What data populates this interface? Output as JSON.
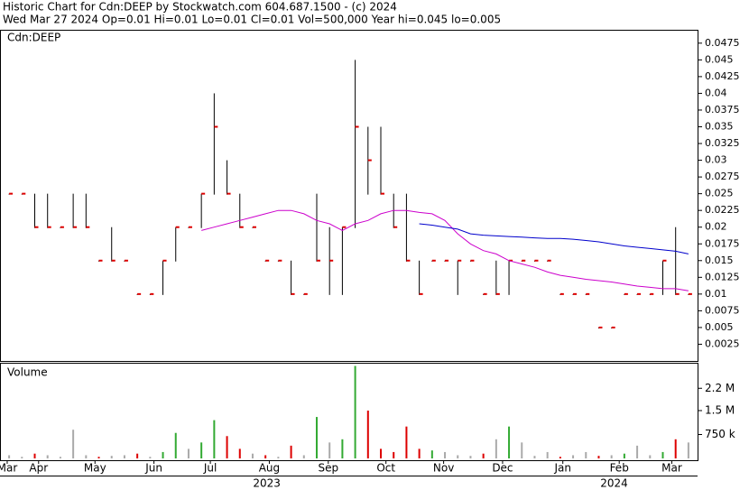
{
  "chart_data": [
    {
      "type": "ohlc",
      "title": "Historic Chart for Cdn:DEEP by Stockwatch.com 604.687.1500 - (c) 2024",
      "subtitle": "Wed Mar 27 2024  Op=0.01  Hi=0.01  Lo=0.01  Cl=0.01  Vol=500,000  Year hi=0.045  lo=0.005",
      "label": "Cdn:DEEP",
      "x": [
        0,
        1,
        2,
        3,
        4,
        5,
        6,
        7,
        8,
        9,
        10,
        11,
        12,
        13,
        14,
        15,
        16,
        17,
        18,
        19,
        20,
        21,
        22,
        23,
        24,
        25,
        26,
        27,
        28,
        29,
        30,
        31,
        32,
        33,
        34,
        35,
        36,
        37,
        38,
        39,
        40,
        41,
        42,
        43,
        44,
        45,
        46,
        47,
        48,
        49,
        50,
        51,
        52,
        53
      ],
      "high": [
        0.025,
        0.025,
        0.025,
        0.025,
        0.02,
        0.025,
        0.025,
        0.015,
        0.02,
        0.015,
        0.01,
        0.01,
        0.015,
        0.02,
        0.02,
        0.025,
        0.04,
        0.03,
        0.025,
        0.02,
        0.015,
        0.015,
        0.015,
        0.01,
        0.025,
        0.02,
        0.02,
        0.045,
        0.035,
        0.035,
        0.025,
        0.025,
        0.015,
        0.015,
        0.015,
        0.015,
        0.015,
        0.01,
        0.015,
        0.015,
        0.015,
        0.015,
        0.015,
        0.01,
        0.01,
        0.01,
        0.005,
        0.005,
        0.01,
        0.01,
        0.01,
        0.015,
        0.02,
        0.01
      ],
      "low": [
        0.025,
        0.025,
        0.02,
        0.02,
        0.02,
        0.02,
        0.02,
        0.015,
        0.015,
        0.015,
        0.01,
        0.01,
        0.01,
        0.015,
        0.02,
        0.02,
        0.025,
        0.025,
        0.02,
        0.02,
        0.015,
        0.015,
        0.01,
        0.01,
        0.015,
        0.01,
        0.01,
        0.02,
        0.025,
        0.025,
        0.02,
        0.015,
        0.01,
        0.015,
        0.015,
        0.01,
        0.015,
        0.01,
        0.01,
        0.01,
        0.015,
        0.015,
        0.015,
        0.01,
        0.01,
        0.01,
        0.005,
        0.005,
        0.01,
        0.01,
        0.01,
        0.01,
        0.01,
        0.01
      ],
      "close": [
        0.025,
        0.025,
        0.02,
        0.02,
        0.02,
        0.02,
        0.02,
        0.015,
        0.015,
        0.015,
        0.01,
        0.01,
        0.015,
        0.02,
        0.02,
        0.025,
        0.035,
        0.025,
        0.02,
        0.02,
        0.015,
        0.015,
        0.01,
        0.01,
        0.015,
        0.015,
        0.02,
        0.035,
        0.03,
        0.025,
        0.02,
        0.015,
        0.01,
        0.015,
        0.015,
        0.015,
        0.015,
        0.01,
        0.01,
        0.015,
        0.015,
        0.015,
        0.015,
        0.01,
        0.01,
        0.01,
        0.005,
        0.005,
        0.01,
        0.01,
        0.01,
        0.015,
        0.01,
        0.01
      ],
      "bar_color": "#000000",
      "close_color": "#dd0000",
      "series": [
        {
          "color": "#cc00cc",
          "values": [
            null,
            null,
            null,
            null,
            null,
            null,
            null,
            null,
            null,
            null,
            null,
            null,
            null,
            null,
            null,
            0.0195,
            0.02,
            0.0205,
            0.021,
            0.0215,
            0.022,
            0.0225,
            0.0225,
            0.022,
            0.021,
            0.0205,
            0.0195,
            0.0205,
            0.021,
            0.022,
            0.0225,
            0.0225,
            0.0222,
            0.022,
            0.021,
            0.019,
            0.0175,
            0.0165,
            0.016,
            0.015,
            0.0145,
            0.014,
            0.0133,
            0.0128,
            0.0125,
            0.0122,
            0.012,
            0.0118,
            0.0115,
            0.0112,
            0.011,
            0.0108,
            0.0108,
            0.0105
          ]
        },
        {
          "color": "#0000cc",
          "values": [
            null,
            null,
            null,
            null,
            null,
            null,
            null,
            null,
            null,
            null,
            null,
            null,
            null,
            null,
            null,
            null,
            null,
            null,
            null,
            null,
            null,
            null,
            null,
            null,
            null,
            null,
            null,
            null,
            null,
            null,
            null,
            null,
            0.0205,
            0.0203,
            0.02,
            0.0197,
            0.019,
            0.0188,
            0.0187,
            0.0186,
            0.0185,
            0.0184,
            0.0183,
            0.0183,
            0.0182,
            0.018,
            0.0178,
            0.0175,
            0.0172,
            0.017,
            0.0168,
            0.0166,
            0.0164,
            0.016
          ]
        }
      ],
      "xlim": [
        -0.5,
        53.5
      ],
      "ylim": [
        0,
        0.0495
      ],
      "yticks": [
        0.0025,
        0.005,
        0.0075,
        0.01,
        0.0125,
        0.015,
        0.0175,
        0.02,
        0.0225,
        0.025,
        0.0275,
        0.03,
        0.0325,
        0.035,
        0.0375,
        0.04,
        0.0425,
        0.045,
        0.0475
      ]
    },
    {
      "type": "bar",
      "title": "Volume",
      "x": [
        0,
        1,
        2,
        3,
        4,
        5,
        6,
        7,
        8,
        9,
        10,
        11,
        12,
        13,
        14,
        15,
        16,
        17,
        18,
        19,
        20,
        21,
        22,
        23,
        24,
        25,
        26,
        27,
        28,
        29,
        30,
        31,
        32,
        33,
        34,
        35,
        36,
        37,
        38,
        39,
        40,
        41,
        42,
        43,
        44,
        45,
        46,
        47,
        48,
        49,
        50,
        51,
        52,
        53
      ],
      "values": [
        100000,
        50000,
        150000,
        100000,
        50000,
        900000,
        100000,
        50000,
        80000,
        100000,
        150000,
        50000,
        200000,
        800000,
        300000,
        500000,
        1200000,
        700000,
        300000,
        150000,
        100000,
        50000,
        400000,
        100000,
        1300000,
        500000,
        600000,
        2900000,
        1500000,
        300000,
        200000,
        1000000,
        300000,
        250000,
        200000,
        100000,
        80000,
        150000,
        600000,
        1000000,
        500000,
        80000,
        200000,
        50000,
        100000,
        200000,
        80000,
        100000,
        150000,
        400000,
        100000,
        200000,
        600000,
        500000
      ],
      "up_color": "#33aa33",
      "down_color": "#dd0000",
      "flat_color": "#aaaaaa",
      "xlim": [
        -0.5,
        53.5
      ],
      "ylim": [
        0,
        3000000
      ],
      "yticks": [
        {
          "value": 750000,
          "label": "750 k"
        },
        {
          "value": 1500000,
          "label": "1.5 M"
        },
        {
          "value": 2200000,
          "label": "2.2 M"
        }
      ],
      "xticks": [
        {
          "value": -0.15,
          "label": "Mar"
        },
        {
          "value": 2.3,
          "label": "Apr"
        },
        {
          "value": 6.7,
          "label": "May"
        },
        {
          "value": 11.3,
          "label": "Jun"
        },
        {
          "value": 15.7,
          "label": "Jul"
        },
        {
          "value": 20.3,
          "label": "Aug"
        },
        {
          "value": 24.9,
          "label": "Sep"
        },
        {
          "value": 29.4,
          "label": "Oct"
        },
        {
          "value": 33.9,
          "label": "Nov"
        },
        {
          "value": 38.5,
          "label": "Dec"
        },
        {
          "value": 43.2,
          "label": "Jan"
        },
        {
          "value": 47.6,
          "label": "Feb"
        },
        {
          "value": 51.7,
          "label": "Mar"
        }
      ],
      "x2ticks": [
        {
          "value": 20.1,
          "label": "2023"
        },
        {
          "value": 47.2,
          "label": "2024"
        }
      ]
    }
  ]
}
